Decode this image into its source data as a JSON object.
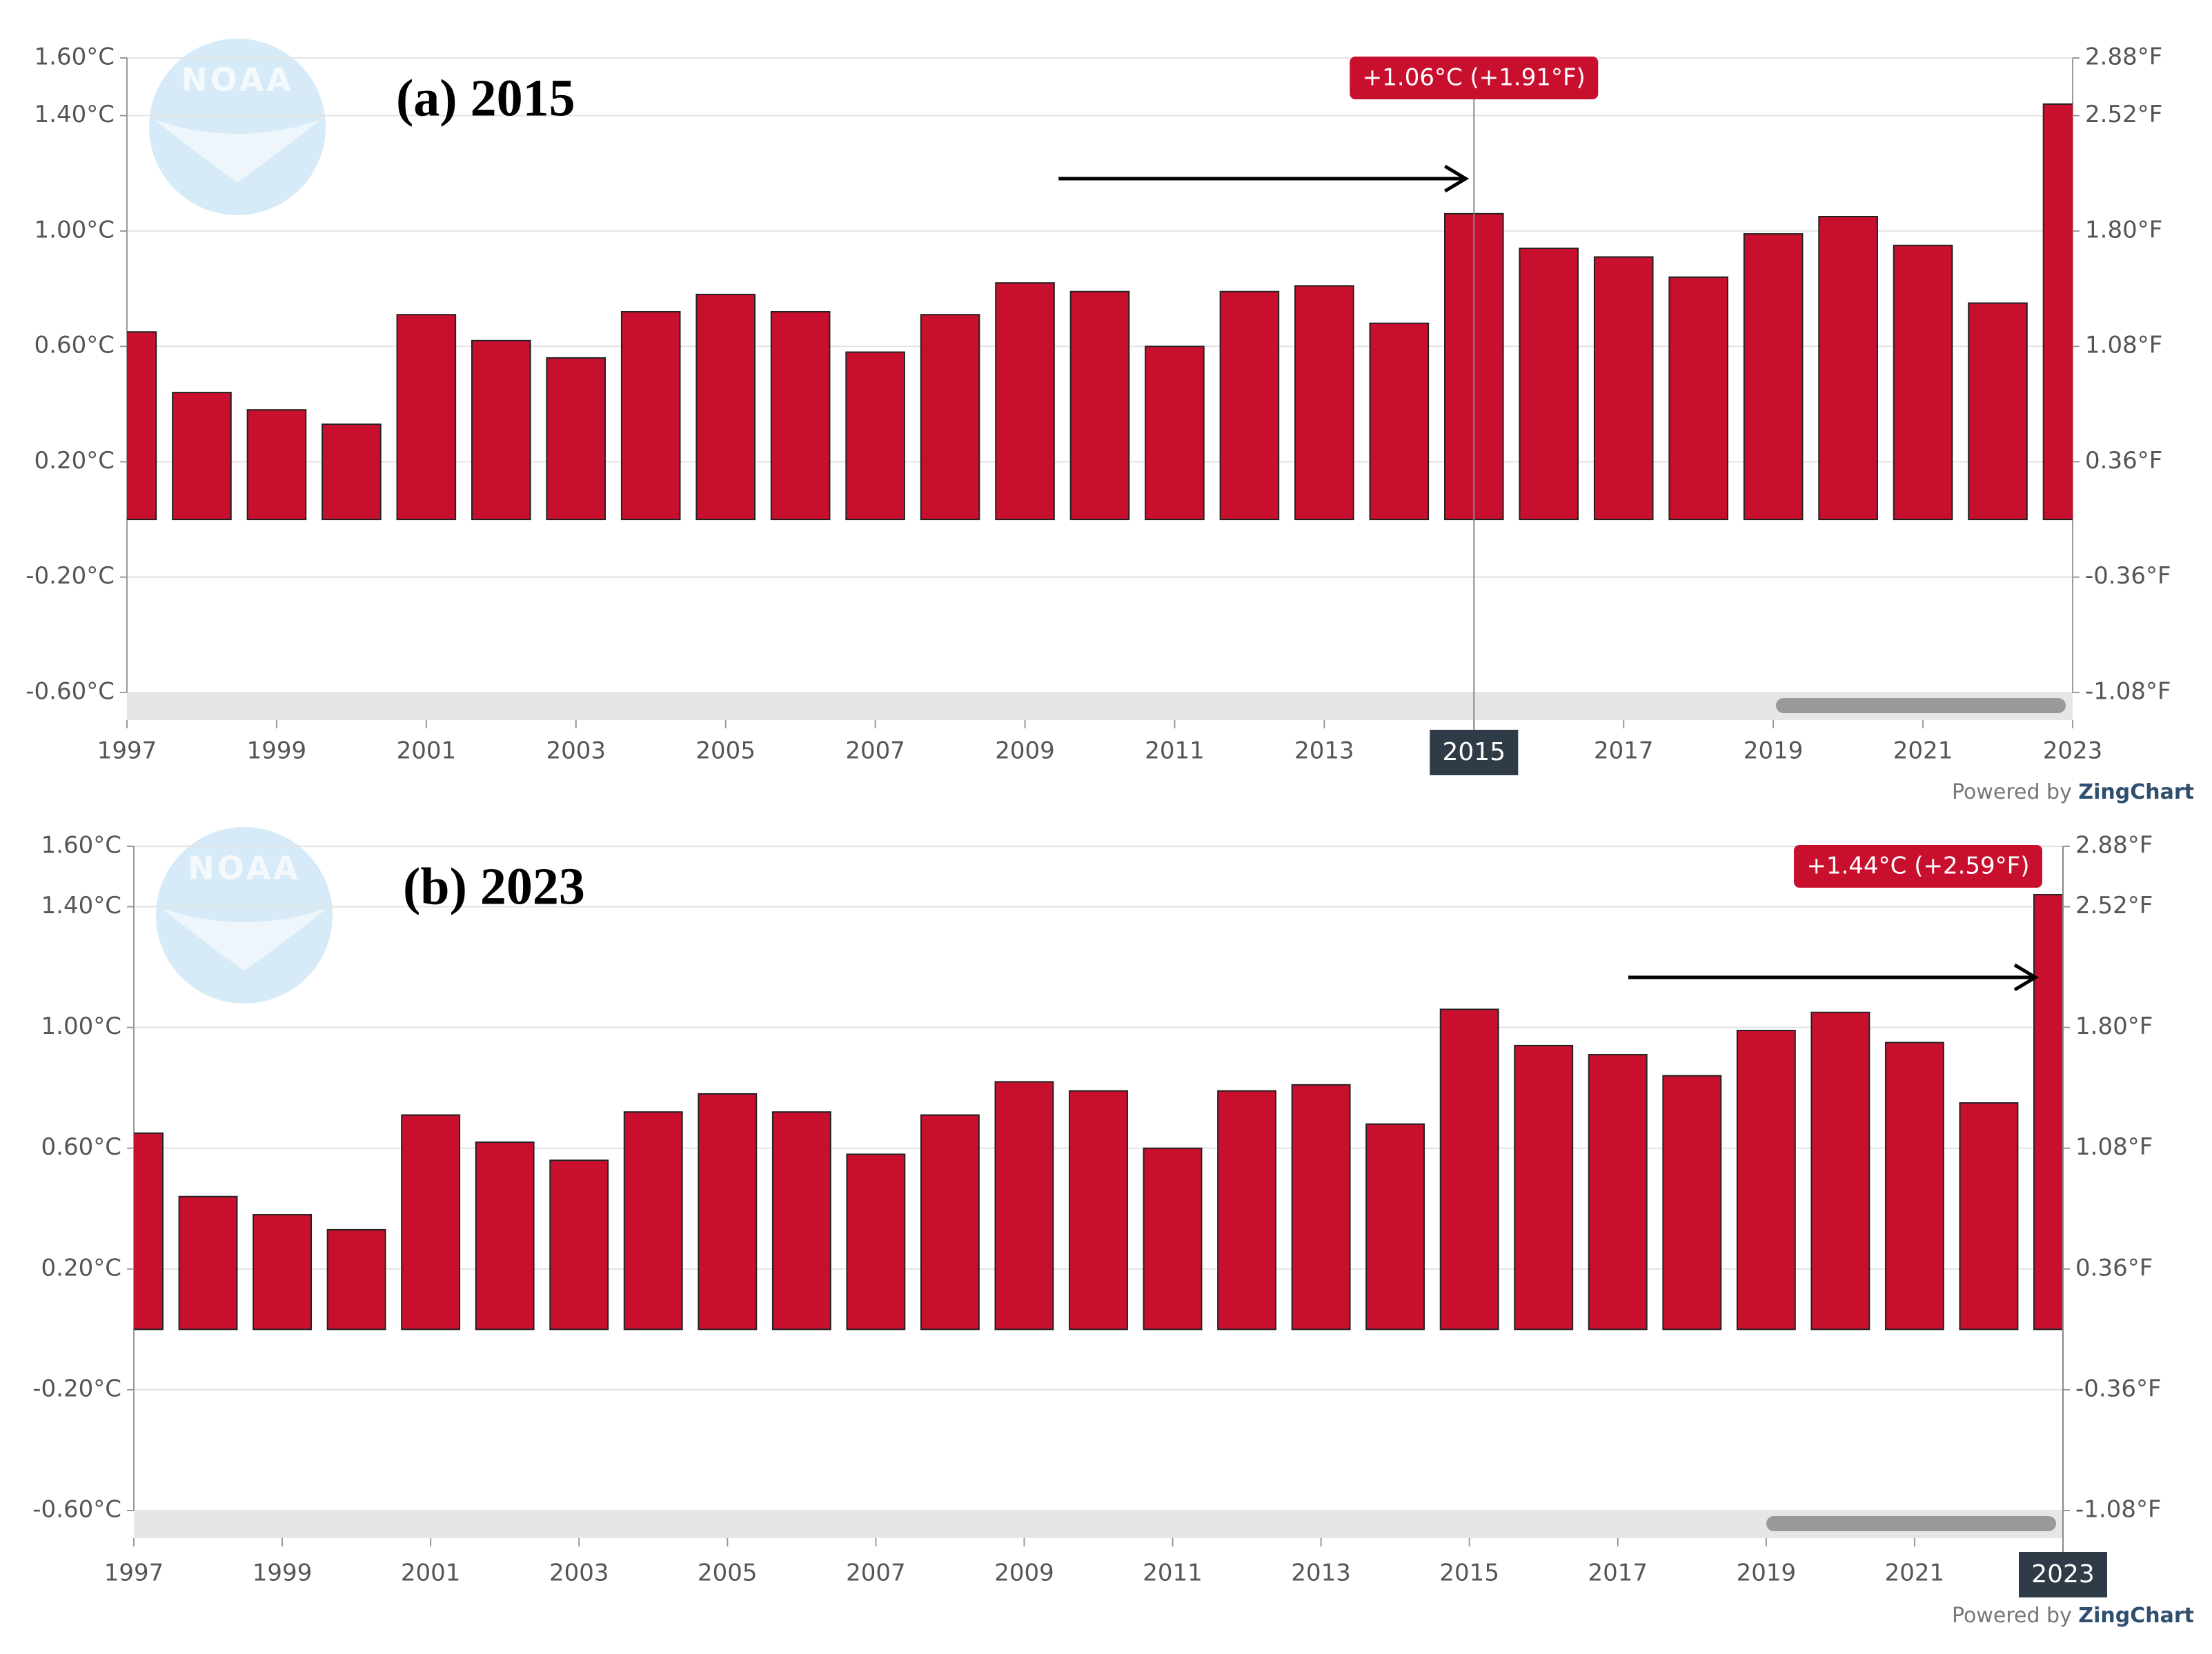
{
  "chart_data": [
    {
      "type": "bar",
      "title": "(a) 2015",
      "logo_text": "NOAA",
      "credit": "Powered by ",
      "credit_brand": "ZingChart",
      "tooltip": "+1.06°C (+1.91°F)",
      "highlight_x": 2015,
      "x": [
        1997,
        1998,
        1999,
        2000,
        2001,
        2002,
        2003,
        2004,
        2005,
        2006,
        2007,
        2008,
        2009,
        2010,
        2011,
        2012,
        2013,
        2014,
        2015,
        2016,
        2017,
        2018,
        2019,
        2020,
        2021,
        2022,
        2023
      ],
      "values": [
        0.65,
        0.44,
        0.38,
        0.33,
        0.71,
        0.62,
        0.56,
        0.72,
        0.78,
        0.72,
        0.58,
        0.71,
        0.82,
        0.79,
        0.6,
        0.79,
        0.81,
        0.68,
        1.06,
        0.94,
        0.91,
        0.84,
        0.99,
        1.05,
        0.95,
        0.75,
        1.44
      ],
      "color": "#c8102e",
      "xlim": [
        1997,
        2023
      ],
      "xticks": [
        1997,
        1999,
        2001,
        2003,
        2005,
        2007,
        2009,
        2011,
        2013,
        2015,
        2017,
        2019,
        2021,
        2023
      ],
      "ylim": [
        -0.6,
        1.6
      ],
      "yticks": [
        {
          "value": -0.6,
          "label": "-0.60°C"
        },
        {
          "value": -0.2,
          "label": "-0.20°C"
        },
        {
          "value": 0.2,
          "label": "0.20°C"
        },
        {
          "value": 0.6,
          "label": "0.60°C"
        },
        {
          "value": 1.0,
          "label": "1.00°C"
        },
        {
          "value": 1.4,
          "label": "1.40°C"
        },
        {
          "value": 1.6,
          "label": "1.60°C"
        }
      ],
      "y2lim": [
        -1.08,
        2.88
      ],
      "y2ticks": [
        {
          "value": -1.08,
          "label": "-1.08°F"
        },
        {
          "value": -0.36,
          "label": "-0.36°F"
        },
        {
          "value": 0.36,
          "label": "0.36°F"
        },
        {
          "value": 1.08,
          "label": "1.08°F"
        },
        {
          "value": 1.8,
          "label": "1.80°F"
        },
        {
          "value": 2.52,
          "label": "2.52°F"
        },
        {
          "value": 2.88,
          "label": "2.88°F"
        }
      ],
      "grid": true
    },
    {
      "type": "bar",
      "title": "(b) 2023",
      "logo_text": "NOAA",
      "credit": "Powered by ",
      "credit_brand": "ZingChart",
      "tooltip": "+1.44°C (+2.59°F)",
      "highlight_x": 2023,
      "x": [
        1997,
        1998,
        1999,
        2000,
        2001,
        2002,
        2003,
        2004,
        2005,
        2006,
        2007,
        2008,
        2009,
        2010,
        2011,
        2012,
        2013,
        2014,
        2015,
        2016,
        2017,
        2018,
        2019,
        2020,
        2021,
        2022,
        2023
      ],
      "values": [
        0.65,
        0.44,
        0.38,
        0.33,
        0.71,
        0.62,
        0.56,
        0.72,
        0.78,
        0.72,
        0.58,
        0.71,
        0.82,
        0.79,
        0.6,
        0.79,
        0.81,
        0.68,
        1.06,
        0.94,
        0.91,
        0.84,
        0.99,
        1.05,
        0.95,
        0.75,
        1.44
      ],
      "color": "#c8102e",
      "xlim": [
        1997,
        2023
      ],
      "xticks": [
        1997,
        1999,
        2001,
        2003,
        2005,
        2007,
        2009,
        2011,
        2013,
        2015,
        2017,
        2019,
        2021,
        2023
      ],
      "ylim": [
        -0.6,
        1.6
      ],
      "yticks": [
        {
          "value": -0.6,
          "label": "-0.60°C"
        },
        {
          "value": -0.2,
          "label": "-0.20°C"
        },
        {
          "value": 0.2,
          "label": "0.20°C"
        },
        {
          "value": 0.6,
          "label": "0.60°C"
        },
        {
          "value": 1.0,
          "label": "1.00°C"
        },
        {
          "value": 1.4,
          "label": "1.40°C"
        },
        {
          "value": 1.6,
          "label": "1.60°C"
        }
      ],
      "y2lim": [
        -1.08,
        2.88
      ],
      "y2ticks": [
        {
          "value": -1.08,
          "label": "-1.08°F"
        },
        {
          "value": -0.36,
          "label": "-0.36°F"
        },
        {
          "value": 0.36,
          "label": "0.36°F"
        },
        {
          "value": 1.08,
          "label": "1.08°F"
        },
        {
          "value": 1.8,
          "label": "1.80°F"
        },
        {
          "value": 2.52,
          "label": "2.52°F"
        },
        {
          "value": 2.88,
          "label": "2.88°F"
        }
      ],
      "grid": true
    }
  ]
}
